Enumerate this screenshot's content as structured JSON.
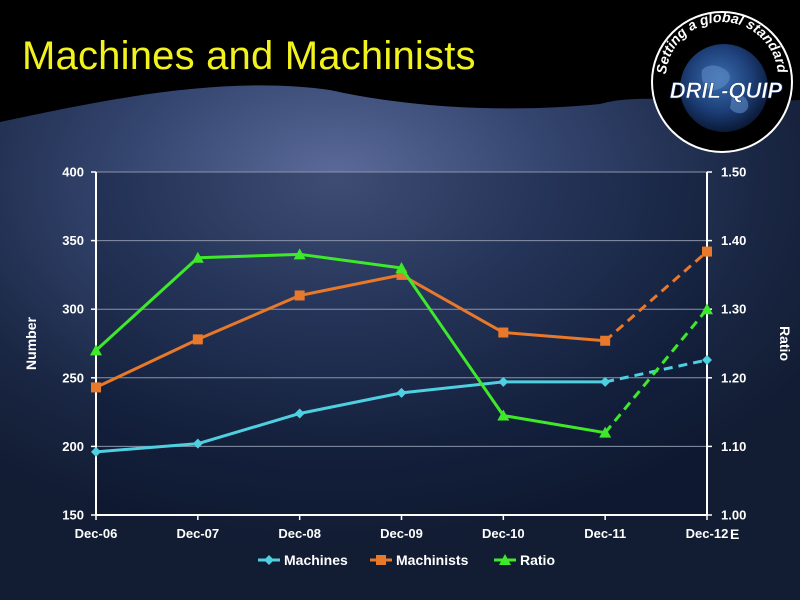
{
  "slide": {
    "title": "Machines and Machinists",
    "logo": {
      "text": "DRIL-QUIP",
      "tagline": "Setting a global standard"
    }
  },
  "colors": {
    "title": "#f2f21e",
    "header_band": "#000000",
    "machines": "#4fd0e0",
    "machinists": "#e8782a",
    "ratio": "#3ee82a"
  },
  "chart_data": {
    "type": "line",
    "categories": [
      "Dec-06",
      "Dec-07",
      "Dec-08",
      "Dec-09",
      "Dec-10",
      "Dec-11",
      "Dec-12"
    ],
    "last_category_suffix": "E",
    "ylabel_left": "Number",
    "ylabel_right": "Ratio",
    "ylim_left": [
      150,
      400
    ],
    "ylim_right": [
      1.0,
      1.5
    ],
    "yticks_left": [
      "150",
      "200",
      "250",
      "300",
      "350",
      "400"
    ],
    "yticks_right": [
      "1.00",
      "1.10",
      "1.20",
      "1.30",
      "1.40",
      "1.50"
    ],
    "grid": true,
    "legend_position": "bottom",
    "series": [
      {
        "name": "Machines",
        "axis": "left",
        "marker": "diamond",
        "color": "#4fd0e0",
        "values": [
          196,
          202,
          224,
          239,
          247,
          247,
          263
        ],
        "dashed_from_index": 5
      },
      {
        "name": "Machinists",
        "axis": "left",
        "marker": "square",
        "color": "#e8782a",
        "values": [
          243,
          278,
          310,
          325,
          283,
          277,
          342
        ],
        "dashed_from_index": 5
      },
      {
        "name": "Ratio",
        "axis": "right",
        "marker": "triangle",
        "color": "#3ee82a",
        "values": [
          1.24,
          1.375,
          1.38,
          1.36,
          1.145,
          1.12,
          1.3
        ],
        "dashed_from_index": 5
      }
    ]
  }
}
